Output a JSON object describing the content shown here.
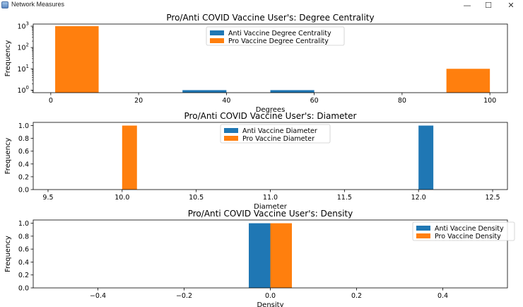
{
  "window": {
    "title": "Network Measures",
    "minimize_glyph": "—",
    "maximize_glyph": "☐",
    "close_glyph": "✕"
  },
  "colors": {
    "anti": "#1f77b4",
    "pro": "#ff7f0e"
  },
  "chart_data": [
    {
      "type": "bar",
      "title": "Pro/Anti COVID Vaccine User's: Degree Centrality",
      "xlabel": "Degrees",
      "ylabel": "Frequency",
      "yscale": "log",
      "xlim": [
        -4,
        104
      ],
      "ylim_log10": [
        -0.12,
        3.1
      ],
      "xticks": [
        0,
        20,
        40,
        60,
        80,
        100
      ],
      "xtick_labels": [
        "0",
        "20",
        "40",
        "60",
        "80",
        "100"
      ],
      "yticks_log10": [
        0,
        1,
        2,
        3
      ],
      "ytick_bases": [
        "10",
        "10",
        "10",
        "10"
      ],
      "ytick_exps": [
        "0",
        "1",
        "2",
        "3"
      ],
      "legend_position": "top-center",
      "series": [
        {
          "name": "Anti Vaccine Degree Centrality",
          "color": "#1f77b4",
          "bars": [
            {
              "x0": 30,
              "x1": 40,
              "value": 1
            },
            {
              "x0": 50,
              "x1": 60,
              "value": 1
            }
          ]
        },
        {
          "name": "Pro Vaccine Degree Centrality",
          "color": "#ff7f0e",
          "bars": [
            {
              "x0": 1,
              "x1": 10.9,
              "value": 1000
            },
            {
              "x0": 90.1,
              "x1": 100,
              "value": 10
            }
          ]
        }
      ]
    },
    {
      "type": "bar",
      "title": "Pro/Anti COVID Vaccine User's: Diameter",
      "xlabel": "Diameter",
      "ylabel": "Frequency",
      "xlim": [
        9.4,
        12.6
      ],
      "ylim": [
        0,
        1.05
      ],
      "xticks": [
        9.5,
        10.0,
        10.5,
        11.0,
        11.5,
        12.0,
        12.5
      ],
      "xtick_labels": [
        "9.5",
        "10.0",
        "10.5",
        "11.0",
        "11.5",
        "12.0",
        "12.5"
      ],
      "yticks": [
        0.0,
        0.2,
        0.4,
        0.6,
        0.8,
        1.0
      ],
      "ytick_labels": [
        "0.0",
        "0.2",
        "0.4",
        "0.6",
        "0.8",
        "1.0"
      ],
      "legend_position": "top-center",
      "series": [
        {
          "name": "Anti Vaccine Diameter",
          "color": "#1f77b4",
          "bars": [
            {
              "x0": 12.0,
              "x1": 12.1,
              "value": 1
            }
          ]
        },
        {
          "name": "Pro Vaccine Diameter",
          "color": "#ff7f0e",
          "bars": [
            {
              "x0": 10.0,
              "x1": 10.1,
              "value": 1
            }
          ]
        }
      ]
    },
    {
      "type": "bar",
      "title": "Pro/Anti COVID Vaccine User's: Density",
      "xlabel": "Density",
      "ylabel": "Frequency",
      "xlim": [
        -0.55,
        0.55
      ],
      "ylim": [
        0,
        1.05
      ],
      "xticks": [
        -0.4,
        -0.2,
        0.0,
        0.2,
        0.4
      ],
      "xtick_labels": [
        "−0.4",
        "−0.2",
        "0.0",
        "0.2",
        "0.4"
      ],
      "yticks": [
        0.0,
        0.2,
        0.4,
        0.6,
        0.8,
        1.0
      ],
      "ytick_labels": [
        "0.0",
        "0.2",
        "0.4",
        "0.6",
        "0.8",
        "1.0"
      ],
      "legend_position": "top-right",
      "series": [
        {
          "name": "Anti Vaccine Density",
          "color": "#1f77b4",
          "bars": [
            {
              "x0": -0.05,
              "x1": 0.0,
              "value": 1
            }
          ]
        },
        {
          "name": "Pro Vaccine Density",
          "color": "#ff7f0e",
          "bars": [
            {
              "x0": 0.0,
              "x1": 0.05,
              "value": 1
            }
          ]
        }
      ]
    }
  ]
}
